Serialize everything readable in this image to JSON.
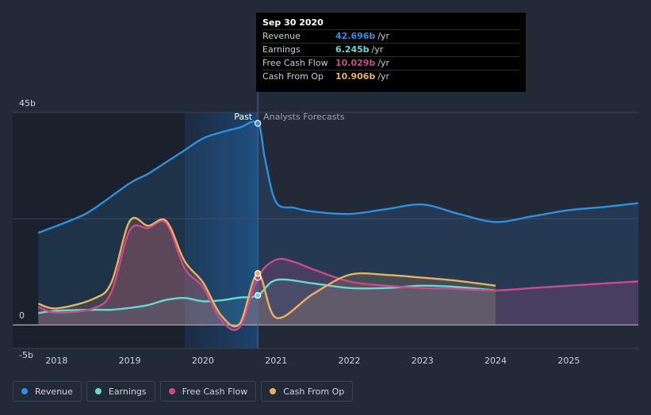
{
  "chart_data": {
    "type": "line",
    "x_ticks": [
      "2018",
      "2019",
      "2020",
      "2021",
      "2022",
      "2023",
      "2024",
      "2025"
    ],
    "y_ticks": [
      {
        "value": 45,
        "label": "45b"
      },
      {
        "value": 0,
        "label": "0"
      },
      {
        "value": -5,
        "label": "-5b"
      }
    ],
    "ylim": [
      -5,
      45
    ],
    "xlim": [
      2017.4,
      2025.95
    ],
    "divider_label_past": "Past",
    "divider_label_forecast": "Analysts Forecasts",
    "divider_x": 2020.75,
    "highlight_start": 2019.75,
    "colors": {
      "Revenue": "#2f8fe0",
      "Earnings": "#65d9d2",
      "Free Cash Flow": "#c84c8b",
      "Cash From Op": "#e9b061"
    },
    "series": [
      {
        "name": "Revenue",
        "points": [
          [
            2017.75,
            19.5
          ],
          [
            2018.25,
            22.5
          ],
          [
            2018.5,
            24.5
          ],
          [
            2019.0,
            30.0
          ],
          [
            2019.25,
            32.0
          ],
          [
            2019.5,
            34.5
          ],
          [
            2019.75,
            37.0
          ],
          [
            2020.0,
            39.5
          ],
          [
            2020.25,
            40.8
          ],
          [
            2020.5,
            41.8
          ],
          [
            2020.75,
            42.696
          ],
          [
            2020.85,
            35.0
          ],
          [
            2021.0,
            26.0
          ],
          [
            2021.25,
            24.8
          ],
          [
            2021.5,
            24.0
          ],
          [
            2022.0,
            23.5
          ],
          [
            2022.5,
            24.5
          ],
          [
            2023.0,
            25.5
          ],
          [
            2023.5,
            23.5
          ],
          [
            2024.0,
            21.8
          ],
          [
            2024.5,
            23.0
          ],
          [
            2025.0,
            24.3
          ],
          [
            2025.5,
            25.0
          ],
          [
            2025.95,
            25.8
          ]
        ]
      },
      {
        "name": "Earnings",
        "points": [
          [
            2017.75,
            2.5
          ],
          [
            2018.0,
            3.0
          ],
          [
            2018.5,
            3.2
          ],
          [
            2018.75,
            3.2
          ],
          [
            2019.0,
            3.6
          ],
          [
            2019.25,
            4.2
          ],
          [
            2019.5,
            5.3
          ],
          [
            2019.75,
            5.7
          ],
          [
            2020.0,
            5.0
          ],
          [
            2020.25,
            5.2
          ],
          [
            2020.5,
            5.8
          ],
          [
            2020.75,
            6.245
          ],
          [
            2021.0,
            9.5
          ],
          [
            2021.5,
            8.8
          ],
          [
            2022.0,
            7.8
          ],
          [
            2022.5,
            7.8
          ],
          [
            2023.0,
            8.3
          ],
          [
            2023.5,
            8.0
          ],
          [
            2024.0,
            7.3
          ]
        ]
      },
      {
        "name": "Free Cash Flow",
        "points": [
          [
            2017.75,
            3.8
          ],
          [
            2018.0,
            2.6
          ],
          [
            2018.5,
            3.5
          ],
          [
            2018.75,
            7.0
          ],
          [
            2019.0,
            20.0
          ],
          [
            2019.25,
            20.5
          ],
          [
            2019.5,
            21.5
          ],
          [
            2019.75,
            12.0
          ],
          [
            2020.0,
            8.0
          ],
          [
            2020.25,
            1.0
          ],
          [
            2020.5,
            -0.5
          ],
          [
            2020.75,
            10.029
          ],
          [
            2021.0,
            13.8
          ],
          [
            2021.25,
            13.3
          ],
          [
            2021.5,
            11.8
          ],
          [
            2022.0,
            9.2
          ],
          [
            2022.5,
            8.3
          ],
          [
            2023.0,
            7.8
          ],
          [
            2023.5,
            7.6
          ],
          [
            2024.0,
            7.3
          ],
          [
            2024.5,
            7.8
          ],
          [
            2025.0,
            8.3
          ],
          [
            2025.5,
            8.8
          ],
          [
            2025.95,
            9.2
          ]
        ]
      },
      {
        "name": "Cash From Op",
        "points": [
          [
            2017.75,
            4.5
          ],
          [
            2018.0,
            3.5
          ],
          [
            2018.5,
            5.5
          ],
          [
            2018.75,
            9.0
          ],
          [
            2019.0,
            22.0
          ],
          [
            2019.25,
            21.0
          ],
          [
            2019.5,
            22.0
          ],
          [
            2019.75,
            13.5
          ],
          [
            2020.0,
            9.0
          ],
          [
            2020.25,
            2.0
          ],
          [
            2020.5,
            0.2
          ],
          [
            2020.75,
            10.906
          ],
          [
            2021.0,
            1.5
          ],
          [
            2021.5,
            6.5
          ],
          [
            2022.0,
            10.6
          ],
          [
            2022.5,
            10.6
          ],
          [
            2023.0,
            10.0
          ],
          [
            2023.5,
            9.3
          ],
          [
            2024.0,
            8.3
          ]
        ]
      }
    ]
  },
  "tooltip": {
    "date": "Sep 30 2020",
    "rows": [
      {
        "label": "Revenue",
        "value": "42.696b",
        "unit": "/yr",
        "color": "#2f8fe0"
      },
      {
        "label": "Earnings",
        "value": "6.245b",
        "unit": "/yr",
        "color": "#65d9d2"
      },
      {
        "label": "Free Cash Flow",
        "value": "10.029b",
        "unit": "/yr",
        "color": "#c84c8b"
      },
      {
        "label": "Cash From Op",
        "value": "10.906b",
        "unit": "/yr",
        "color": "#e9b061"
      }
    ]
  },
  "legend": [
    {
      "label": "Revenue",
      "color": "#2f8fe0"
    },
    {
      "label": "Earnings",
      "color": "#65d9d2"
    },
    {
      "label": "Free Cash Flow",
      "color": "#c84c8b"
    },
    {
      "label": "Cash From Op",
      "color": "#e9b061"
    }
  ]
}
